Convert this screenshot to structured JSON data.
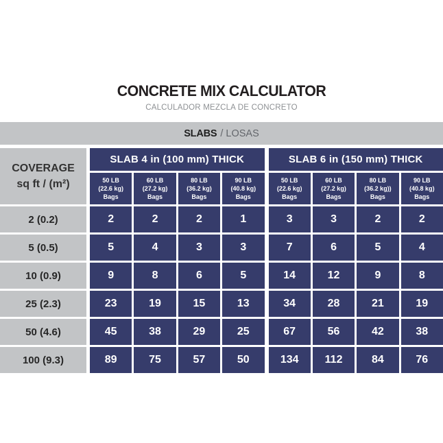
{
  "page": {
    "title": "CONCRETE MIX CALCULATOR",
    "subtitle": "CALCULADOR MEZCLA DE CONCRETO"
  },
  "section_band": {
    "primary": "SLABS",
    "secondary": "/ LOSAS"
  },
  "table": {
    "coverage_header": {
      "line1": "COVERAGE",
      "line2": "sq ft / (m²)"
    },
    "groups": [
      {
        "label": "SLAB 4 in (100 mm) THICK",
        "columns": [
          {
            "weight": "50 LB",
            "metric": "(22.6 kg)",
            "unit": "Bags"
          },
          {
            "weight": "60 LB",
            "metric": "(27.2 kg)",
            "unit": "Bags"
          },
          {
            "weight": "80 LB",
            "metric": "(36.2 kg)",
            "unit": "Bags"
          },
          {
            "weight": "90 LB",
            "metric": "(40.8 kg)",
            "unit": "Bags"
          }
        ]
      },
      {
        "label": "SLAB 6 in (150 mm) THICK",
        "columns": [
          {
            "weight": "50 LB",
            "metric": "(22.6 kg)",
            "unit": "Bags"
          },
          {
            "weight": "60 LB",
            "metric": "(27.2 kg)",
            "unit": "Bags"
          },
          {
            "weight": "80 LB",
            "metric": "(36.2 kg))",
            "unit": "Bags"
          },
          {
            "weight": "90 LB",
            "metric": "(40.8 kg)",
            "unit": "Bags"
          }
        ]
      }
    ],
    "rows": [
      {
        "coverage": "2 (0.2)",
        "values": [
          2,
          2,
          2,
          1,
          3,
          3,
          2,
          2
        ]
      },
      {
        "coverage": "5 (0.5)",
        "values": [
          5,
          4,
          3,
          3,
          7,
          6,
          5,
          4
        ]
      },
      {
        "coverage": "10 (0.9)",
        "values": [
          9,
          8,
          6,
          5,
          14,
          12,
          9,
          8
        ]
      },
      {
        "coverage": "25 (2.3)",
        "values": [
          23,
          19,
          15,
          13,
          34,
          28,
          21,
          19
        ]
      },
      {
        "coverage": "50 (4.6)",
        "values": [
          45,
          38,
          29,
          25,
          67,
          56,
          42,
          38
        ]
      },
      {
        "coverage": "100 (9.3)",
        "values": [
          89,
          75,
          57,
          50,
          134,
          112,
          84,
          76
        ]
      }
    ]
  },
  "colors": {
    "navy": "#363c6b",
    "gray": "#c2c4c6"
  },
  "chart_data": {
    "type": "table",
    "title": "CONCRETE MIX CALCULATOR",
    "subtitle": "CALCULADOR MEZCLA DE CONCRETO",
    "section": "SLABS / LOSAS",
    "row_header": "COVERAGE sq ft / (m²)",
    "column_groups": [
      "SLAB 4 in (100 mm) THICK",
      "SLAB 6 in (150 mm) THICK"
    ],
    "columns": [
      "50 LB (22.6 kg) Bags",
      "60 LB (27.2 kg) Bags",
      "80 LB (36.2 kg) Bags",
      "90 LB (40.8 kg) Bags",
      "50 LB (22.6 kg) Bags",
      "60 LB (27.2 kg) Bags",
      "80 LB (36.2 kg)) Bags",
      "90 LB (40.8 kg) Bags"
    ],
    "coverage_sqft_m2": [
      "2 (0.2)",
      "5 (0.5)",
      "10 (0.9)",
      "25 (2.3)",
      "50 (4.6)",
      "100 (9.3)"
    ],
    "bags_needed": [
      [
        2,
        2,
        2,
        1,
        3,
        3,
        2,
        2
      ],
      [
        5,
        4,
        3,
        3,
        7,
        6,
        5,
        4
      ],
      [
        9,
        8,
        6,
        5,
        14,
        12,
        9,
        8
      ],
      [
        23,
        19,
        15,
        13,
        34,
        28,
        21,
        19
      ],
      [
        45,
        38,
        29,
        25,
        67,
        56,
        42,
        38
      ],
      [
        89,
        75,
        57,
        50,
        134,
        112,
        84,
        76
      ]
    ]
  }
}
